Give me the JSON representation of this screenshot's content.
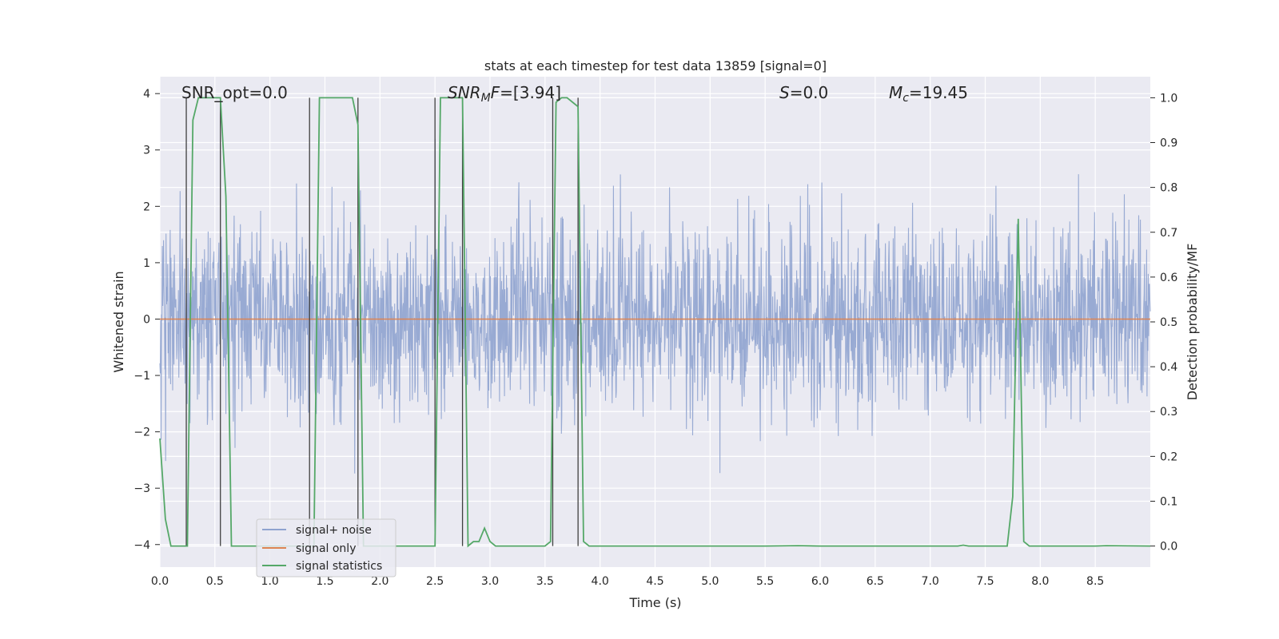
{
  "chart_data": {
    "type": "line",
    "title": "stats at each timestep for test data 13859 [signal=0]",
    "xlabel": "Time (s)",
    "ylabel_left": "Whitened strain",
    "ylabel_right": "Detection probability/MF",
    "xlim": [
      0.0,
      9.0
    ],
    "ylim_left": [
      -4.4,
      4.3
    ],
    "ylim_right": [
      -0.047,
      1.047
    ],
    "x_ticks": [
      "0.0",
      "0.5",
      "1.0",
      "1.5",
      "2.0",
      "2.5",
      "3.0",
      "3.5",
      "4.0",
      "4.5",
      "5.0",
      "5.5",
      "6.0",
      "6.5",
      "7.0",
      "7.5",
      "8.0",
      "8.5"
    ],
    "y_ticks_left": [
      "−4",
      "−3",
      "−2",
      "−1",
      "0",
      "1",
      "2",
      "3",
      "4"
    ],
    "y_ticks_right": [
      "0.0",
      "0.1",
      "0.2",
      "0.3",
      "0.4",
      "0.5",
      "0.6",
      "0.7",
      "0.8",
      "0.9",
      "1.0"
    ],
    "grid": true,
    "annotations": {
      "snr_opt": {
        "prefix": "SNR_opt=",
        "value": "0.0"
      },
      "snr_mf": {
        "sym": "SNR",
        "sub": "M",
        "mid": "F=",
        "value": "[3.94]"
      },
      "s": {
        "sym": "S",
        "value": "=0.0"
      },
      "mc": {
        "sym": "M",
        "sub": "c",
        "value": "=19.45"
      }
    },
    "legend": {
      "location": "lower-left",
      "items": [
        {
          "label": "signal+ noise",
          "color": "#8fa3cf"
        },
        {
          "label": "signal only",
          "color": "#dd8452"
        },
        {
          "label": "signal statistics",
          "color": "#55a868"
        }
      ]
    },
    "series": [
      {
        "name": "signal+ noise",
        "color": "#8fa3cf",
        "description": "whitened strain noise, amplitude roughly ±2 with spikes to ±3.6"
      },
      {
        "name": "signal only",
        "color": "#dd8452",
        "values": "zero"
      },
      {
        "name": "signal statistics",
        "color": "#55a868",
        "axis": "right",
        "x": [
          0.0,
          0.05,
          0.1,
          0.15,
          0.2,
          0.25,
          0.3,
          0.35,
          0.4,
          0.45,
          0.5,
          0.55,
          0.6,
          0.65,
          0.7,
          0.75,
          0.8,
          1.35,
          1.4,
          1.45,
          1.5,
          1.55,
          1.6,
          1.65,
          1.7,
          1.75,
          1.8,
          1.85,
          1.9,
          1.95,
          2.5,
          2.55,
          2.6,
          2.65,
          2.7,
          2.75,
          2.8,
          2.85,
          2.9,
          2.95,
          3.0,
          3.05,
          3.1,
          3.5,
          3.55,
          3.6,
          3.65,
          3.7,
          3.75,
          3.8,
          3.85,
          3.9,
          3.95,
          4.0,
          4.5,
          5.0,
          5.5,
          5.8,
          6.0,
          6.5,
          7.0,
          7.25,
          7.3,
          7.35,
          7.4,
          7.5,
          7.7,
          7.75,
          7.8,
          7.85,
          7.9,
          7.95,
          8.0,
          8.5,
          8.6,
          9.0
        ],
        "values": [
          0.24,
          0.06,
          0.0,
          0.0,
          0.0,
          0.0,
          0.95,
          1.0,
          1.0,
          1.0,
          1.0,
          1.0,
          0.78,
          0.0,
          0.0,
          0.0,
          0.0,
          0.0,
          0.0,
          1.0,
          1.0,
          1.0,
          1.0,
          1.0,
          1.0,
          1.0,
          0.94,
          0.0,
          0.0,
          0.0,
          0.0,
          1.0,
          1.0,
          1.0,
          1.0,
          1.0,
          0.0,
          0.01,
          0.01,
          0.04,
          0.01,
          0.0,
          0.0,
          0.0,
          0.01,
          0.99,
          1.0,
          1.0,
          0.99,
          0.98,
          0.01,
          0.0,
          0.0,
          0.0,
          0.0,
          0.0,
          0.0,
          0.001,
          0.0,
          0.0,
          0.0,
          0.0,
          0.002,
          0.0,
          0.0,
          0.0,
          0.0,
          0.11,
          0.73,
          0.01,
          0.0,
          0.0,
          0.0,
          0.0,
          0.001,
          0.0
        ]
      }
    ],
    "markers": {
      "style": "vertical lines at transitions",
      "x": [
        0.24,
        0.55,
        1.36,
        1.8,
        2.5,
        2.75,
        3.57,
        3.8
      ]
    }
  }
}
